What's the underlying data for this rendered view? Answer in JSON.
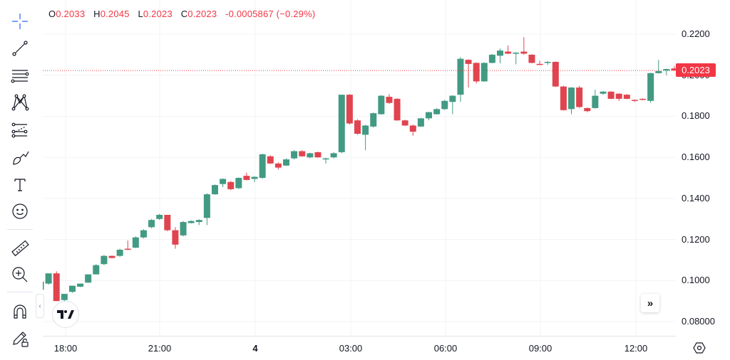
{
  "legend": {
    "open_label": "O",
    "open": "0.2033",
    "high_label": "H",
    "high": "0.2045",
    "low_label": "L",
    "low": "0.2023",
    "close_label": "C",
    "close": "0.2023",
    "change": "-0.0005867 (−0.29%)"
  },
  "toolbar": {
    "items": [
      {
        "name": "crosshair-icon"
      },
      {
        "name": "trend-line-icon"
      },
      {
        "name": "fib-retracement-icon"
      },
      {
        "name": "pattern-icon"
      },
      {
        "name": "prediction-icon"
      },
      {
        "name": "brush-icon"
      },
      {
        "name": "text-icon"
      },
      {
        "name": "emoji-icon"
      },
      {
        "name": "ruler-icon"
      },
      {
        "name": "zoom-in-icon"
      },
      {
        "name": "magnet-icon"
      },
      {
        "name": "lock-drawings-icon"
      }
    ]
  },
  "price_axis": {
    "labels": [
      "0.2200",
      "0.2000",
      "0.1800",
      "0.1600",
      "0.1400",
      "0.1200",
      "0.1000",
      "0.08000"
    ],
    "current_price": "0.2023"
  },
  "time_axis": {
    "labels": [
      "18:00",
      "21:00",
      "4",
      "03:00",
      "06:00",
      "09:00",
      "12:00"
    ]
  },
  "colors": {
    "up": "#26a69a",
    "up_body": "#429a83",
    "down": "#f23645",
    "down_body": "#e0444f",
    "grid": "#f2f3f5",
    "text": "#131722",
    "price_line": "#f23645"
  },
  "chart_data": {
    "type": "candlestick",
    "title": "",
    "xlabel": "",
    "ylabel": "",
    "ylim": [
      0.072,
      0.2265
    ],
    "x_ticks": [
      "18:00",
      "21:00",
      "4",
      "03:00",
      "06:00",
      "09:00",
      "12:00"
    ],
    "y_ticks": [
      0.08,
      0.1,
      0.12,
      0.14,
      0.16,
      0.18,
      0.2,
      0.22
    ],
    "interval": "15m (approx)",
    "ohlc": [
      [
        0.0955,
        0.0995,
        0.0945,
        0.0995
      ],
      [
        0.0985,
        0.1035,
        0.098,
        0.1035
      ],
      [
        0.1035,
        0.09,
        0.1045,
        0.09
      ],
      [
        0.0905,
        0.0935,
        0.088,
        0.0935
      ],
      [
        0.0945,
        0.0975,
        0.094,
        0.0975
      ],
      [
        0.097,
        0.0985,
        0.0968,
        0.0985
      ],
      [
        0.099,
        0.103,
        0.0988,
        0.103
      ],
      [
        0.103,
        0.1075,
        0.103,
        0.108
      ],
      [
        0.108,
        0.112,
        0.1075,
        0.1125
      ],
      [
        0.112,
        0.111,
        0.1108,
        0.1122
      ],
      [
        0.112,
        0.115,
        0.1115,
        0.1155
      ],
      [
        0.1155,
        0.115,
        0.1195,
        0.1148
      ],
      [
        0.116,
        0.121,
        0.1158,
        0.1215
      ],
      [
        0.121,
        0.1245,
        0.1205,
        0.125
      ],
      [
        0.126,
        0.1295,
        0.1255,
        0.13
      ],
      [
        0.13,
        0.132,
        0.1295,
        0.1325
      ],
      [
        0.132,
        0.1245,
        0.132,
        0.124
      ],
      [
        0.1245,
        0.1175,
        0.126,
        0.1155
      ],
      [
        0.122,
        0.1285,
        0.1215,
        0.129
      ],
      [
        0.128,
        0.129,
        0.1278,
        0.1293
      ],
      [
        0.1285,
        0.1295,
        0.127,
        0.1298
      ],
      [
        0.1305,
        0.142,
        0.127,
        0.1425
      ],
      [
        0.142,
        0.1465,
        0.1418,
        0.1468
      ],
      [
        0.147,
        0.1495,
        0.1455,
        0.1498
      ],
      [
        0.148,
        0.1445,
        0.144,
        0.1485
      ],
      [
        0.145,
        0.15,
        0.1445,
        0.1502
      ],
      [
        0.151,
        0.149,
        0.1488,
        0.1525
      ],
      [
        0.1495,
        0.1505,
        0.148,
        0.1508
      ],
      [
        0.15,
        0.1615,
        0.1495,
        0.1618
      ],
      [
        0.1605,
        0.157,
        0.1568,
        0.161
      ],
      [
        0.157,
        0.155,
        0.154,
        0.1575
      ],
      [
        0.156,
        0.159,
        0.1558,
        0.1595
      ],
      [
        0.1595,
        0.163,
        0.159,
        0.1635
      ],
      [
        0.163,
        0.1605,
        0.1603,
        0.1635
      ],
      [
        0.16,
        0.162,
        0.1595,
        0.1623
      ],
      [
        0.1625,
        0.16,
        0.1598,
        0.1628
      ],
      [
        0.159,
        0.1595,
        0.157,
        0.1598
      ],
      [
        0.16,
        0.162,
        0.1595,
        0.1625
      ],
      [
        0.1625,
        0.1905,
        0.162,
        0.1905
      ],
      [
        0.1905,
        0.1765,
        0.176,
        0.1908
      ],
      [
        0.178,
        0.1715,
        0.171,
        0.1785
      ],
      [
        0.171,
        0.1755,
        0.1635,
        0.1758
      ],
      [
        0.175,
        0.1815,
        0.1745,
        0.1818
      ],
      [
        0.181,
        0.19,
        0.1808,
        0.1903
      ],
      [
        0.1895,
        0.1865,
        0.186,
        0.1908
      ],
      [
        0.1885,
        0.178,
        0.1778,
        0.1888
      ],
      [
        0.178,
        0.1755,
        0.1752,
        0.1783
      ],
      [
        0.1755,
        0.1725,
        0.1705,
        0.176
      ],
      [
        0.175,
        0.179,
        0.1748,
        0.1792
      ],
      [
        0.179,
        0.182,
        0.178,
        0.1822
      ],
      [
        0.181,
        0.1835,
        0.1808,
        0.184
      ],
      [
        0.1835,
        0.1875,
        0.183,
        0.188
      ],
      [
        0.187,
        0.19,
        0.181,
        0.1903
      ],
      [
        0.1905,
        0.208,
        0.187,
        0.2088
      ],
      [
        0.2075,
        0.2055,
        0.194,
        0.2078
      ],
      [
        0.206,
        0.197,
        0.196,
        0.2062
      ],
      [
        0.197,
        0.206,
        0.1968,
        0.2063
      ],
      [
        0.206,
        0.21,
        0.2058,
        0.2103
      ],
      [
        0.2095,
        0.212,
        0.2058,
        0.213
      ],
      [
        0.2115,
        0.2105,
        0.2103,
        0.2145
      ],
      [
        0.2105,
        0.211,
        0.2053,
        0.2112
      ],
      [
        0.2115,
        0.2105,
        0.21,
        0.2185
      ],
      [
        0.21,
        0.206,
        0.2058,
        0.2102
      ],
      [
        0.2055,
        0.2052,
        0.205,
        0.207
      ],
      [
        0.206,
        0.2065,
        0.205,
        0.2068
      ],
      [
        0.2065,
        0.1945,
        0.1943,
        0.2067
      ],
      [
        0.1945,
        0.183,
        0.1828,
        0.1948
      ],
      [
        0.1835,
        0.194,
        0.181,
        0.1942
      ],
      [
        0.194,
        0.1845,
        0.184,
        0.1948
      ],
      [
        0.184,
        0.1825,
        0.182,
        0.1843
      ],
      [
        0.184,
        0.19,
        0.1838,
        0.193
      ],
      [
        0.191,
        0.192,
        0.1905,
        0.1923
      ],
      [
        0.192,
        0.1885,
        0.1883,
        0.1922
      ],
      [
        0.191,
        0.1885,
        0.1875,
        0.1913
      ],
      [
        0.1905,
        0.1885,
        0.1883,
        0.1908
      ],
      [
        0.188,
        0.1878,
        0.187,
        0.1882
      ],
      [
        0.1885,
        0.188,
        0.1878,
        0.1887
      ],
      [
        0.1875,
        0.201,
        0.1865,
        0.2012
      ],
      [
        0.201,
        0.202,
        0.2008,
        0.2075
      ],
      [
        0.2023,
        0.203,
        0.2,
        0.2032
      ],
      [
        0.2033,
        0.2023,
        0.2023,
        0.2045
      ]
    ],
    "ohlc_format": "[open, close, low, high]",
    "current_price": 0.2023
  }
}
